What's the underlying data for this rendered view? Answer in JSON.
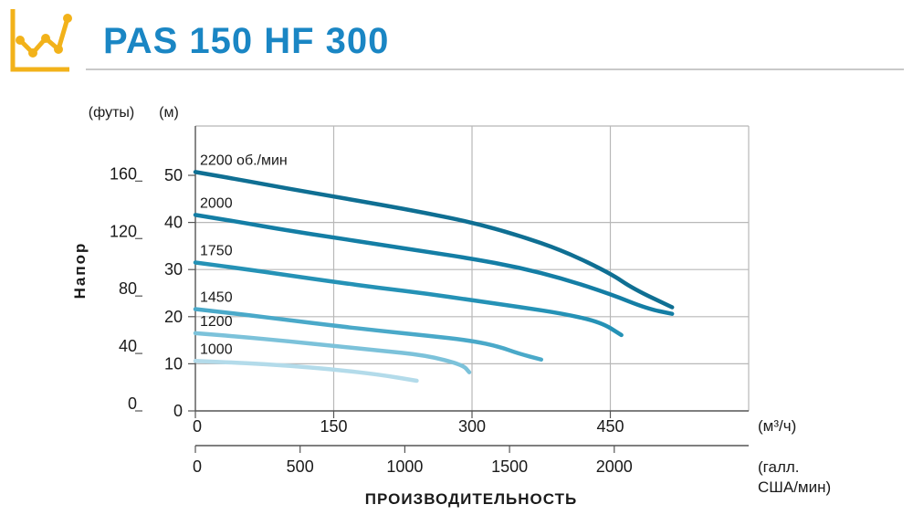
{
  "header": {
    "title": "PAS 150 HF 300",
    "logo_icon": "line-chart-icon",
    "accent_color": "#f2b21a",
    "title_color": "#1a86c4"
  },
  "chart_data": {
    "type": "line",
    "title": "PAS 150 HF 300",
    "xlabel": "ПРОИЗВОДИТЕЛЬНОСТЬ",
    "ylabel": "Напор",
    "x_unit": "(м³/ч)",
    "x2_unit": "(галл. США/мин)",
    "y_unit": "(м)",
    "y2_unit": "(футы)",
    "xlim": [
      0,
      600
    ],
    "ylim": [
      0,
      50
    ],
    "x_ticks": [
      "0",
      "150",
      "300",
      "450"
    ],
    "y_ticks": [
      "0",
      "10",
      "20",
      "30",
      "40",
      "50"
    ],
    "x2_ticks": [
      "0",
      "500",
      "1000",
      "1500",
      "2000"
    ],
    "y2_ticks": [
      "0",
      "40",
      "80",
      "120",
      "160"
    ],
    "grid": true,
    "series": [
      {
        "name": "2200 об./мин",
        "color": "#0f6f93",
        "points": [
          [
            0,
            50.7
          ],
          [
            50,
            49
          ],
          [
            100,
            47.2
          ],
          [
            150,
            45.5
          ],
          [
            200,
            43.8
          ],
          [
            250,
            42
          ],
          [
            300,
            40
          ],
          [
            350,
            37.3
          ],
          [
            400,
            33.9
          ],
          [
            450,
            29.2
          ],
          [
            475,
            25.9
          ],
          [
            517,
            22
          ]
        ]
      },
      {
        "name": "2000",
        "color": "#147ea5",
        "points": [
          [
            0,
            41.6
          ],
          [
            50,
            40
          ],
          [
            100,
            38.3
          ],
          [
            150,
            36.8
          ],
          [
            200,
            35.3
          ],
          [
            250,
            33.8
          ],
          [
            300,
            32.3
          ],
          [
            350,
            30.5
          ],
          [
            400,
            28
          ],
          [
            450,
            24.8
          ],
          [
            490,
            21.7
          ],
          [
            517,
            20.6
          ]
        ]
      },
      {
        "name": "1750",
        "color": "#2592b6",
        "points": [
          [
            0,
            31.5
          ],
          [
            50,
            30.2
          ],
          [
            100,
            28.8
          ],
          [
            150,
            27.4
          ],
          [
            200,
            26.1
          ],
          [
            250,
            24.9
          ],
          [
            300,
            23.5
          ],
          [
            350,
            22.1
          ],
          [
            400,
            20.6
          ],
          [
            440,
            18.8
          ],
          [
            462,
            16.1
          ]
        ]
      },
      {
        "name": "1450",
        "color": "#4aa9c9",
        "points": [
          [
            0,
            21.6
          ],
          [
            50,
            20.5
          ],
          [
            100,
            19.3
          ],
          [
            150,
            18.1
          ],
          [
            200,
            17
          ],
          [
            250,
            16
          ],
          [
            300,
            14.9
          ],
          [
            330,
            13.6
          ],
          [
            350,
            12.2
          ],
          [
            375,
            10.9
          ]
        ]
      },
      {
        "name": "1200",
        "color": "#7cc2da",
        "points": [
          [
            0,
            16.5
          ],
          [
            50,
            15.7
          ],
          [
            100,
            14.8
          ],
          [
            150,
            13.8
          ],
          [
            200,
            12.8
          ],
          [
            250,
            11.8
          ],
          [
            290,
            9.8
          ],
          [
            297,
            8.2
          ]
        ]
      },
      {
        "name": "1000",
        "color": "#b3dbea",
        "points": [
          [
            0,
            10.6
          ],
          [
            50,
            10.2
          ],
          [
            100,
            9.6
          ],
          [
            150,
            8.8
          ],
          [
            200,
            7.7
          ],
          [
            240,
            6.4
          ]
        ]
      }
    ]
  }
}
